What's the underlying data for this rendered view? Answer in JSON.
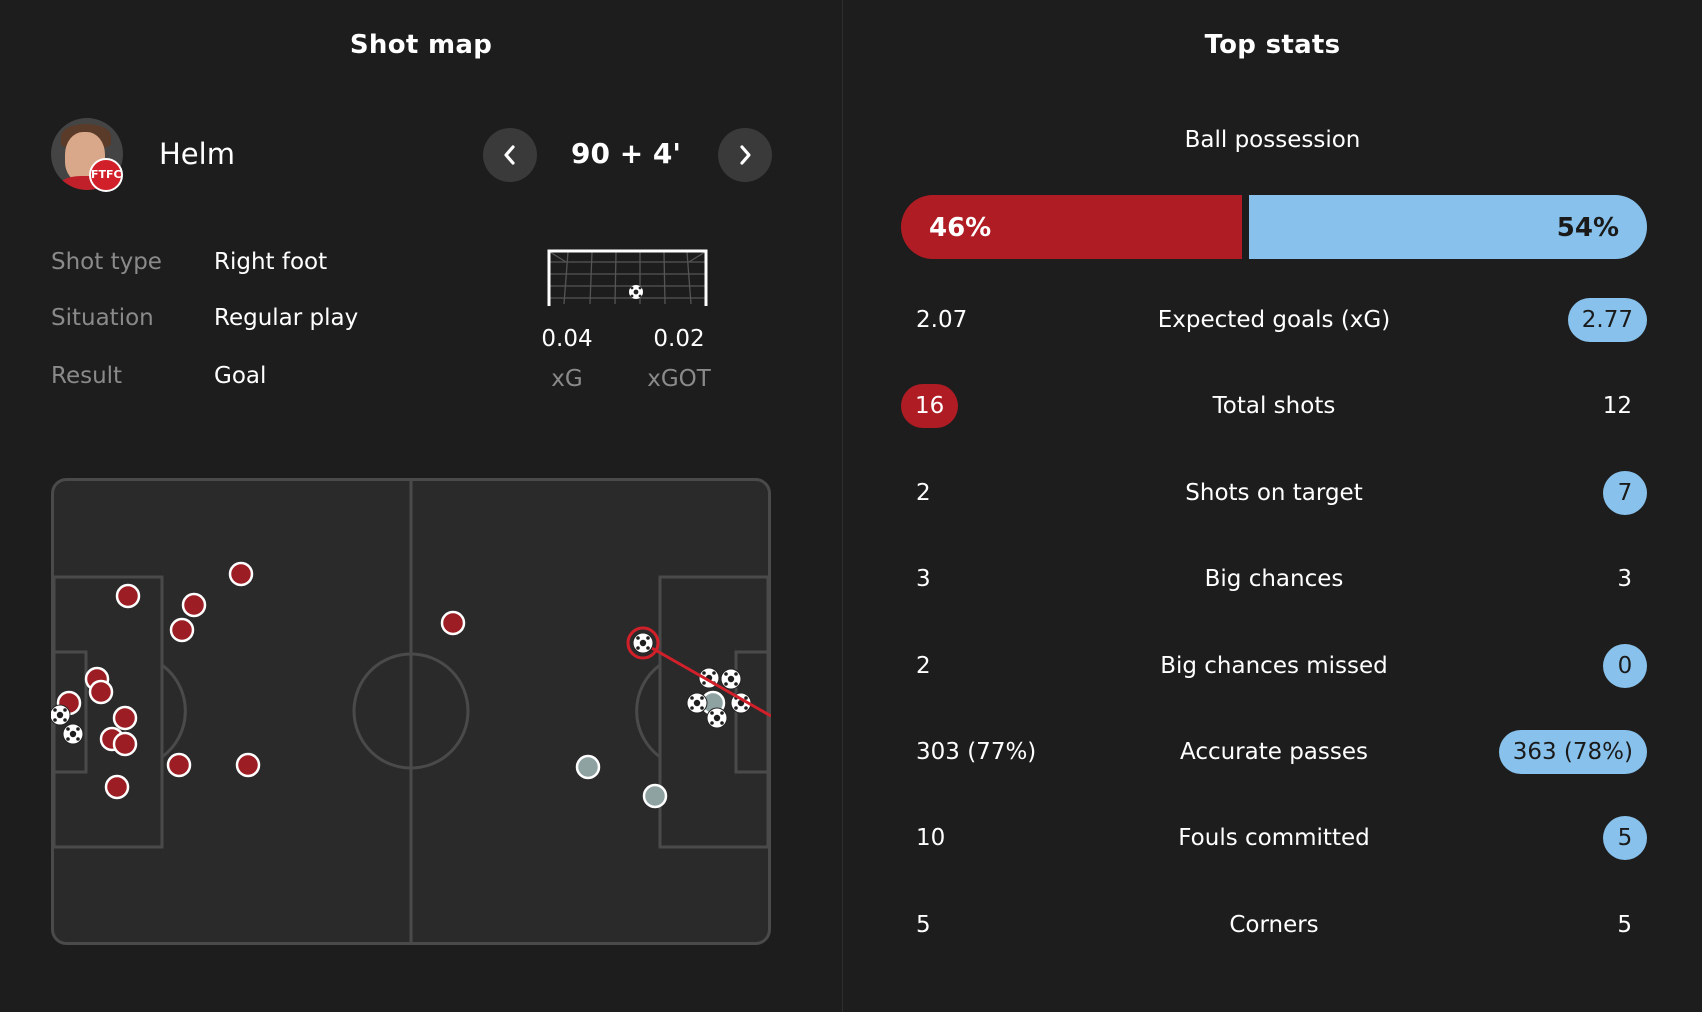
{
  "shot_map": {
    "title": "Shot map",
    "player": {
      "name": "Helm",
      "badge": "FTFC"
    },
    "minute": "90 + 4'",
    "details": [
      {
        "label": "Shot type",
        "value": "Right foot"
      },
      {
        "label": "Situation",
        "value": "Regular play"
      },
      {
        "label": "Result",
        "value": "Goal"
      }
    ],
    "xg": {
      "value": "0.04",
      "label": "xG"
    },
    "xgot": {
      "value": "0.02",
      "label": "xGOT"
    },
    "colors": {
      "home_shot": "#9c1e24",
      "away_shot": "#8fa2a2",
      "selected_line": "#d2202a",
      "pitch": "#2a2a2a",
      "pitch_lines": "#4a4a4a"
    }
  },
  "top_stats": {
    "title": "Top stats",
    "possession": {
      "label": "Ball possession",
      "home": "46%",
      "away": "54%",
      "home_fraction": 0.46
    },
    "rows": [
      {
        "home": "2.07",
        "label": "Expected goals (xG)",
        "away": "2.77",
        "highlight": "away"
      },
      {
        "home": "16",
        "label": "Total shots",
        "away": "12",
        "highlight": "home"
      },
      {
        "home": "2",
        "label": "Shots on target",
        "away": "7",
        "highlight": "away"
      },
      {
        "home": "3",
        "label": "Big chances",
        "away": "3",
        "highlight": "none"
      },
      {
        "home": "2",
        "label": "Big chances missed",
        "away": "0",
        "highlight": "away"
      },
      {
        "home": "303 (77%)",
        "label": "Accurate passes",
        "away": "363 (78%)",
        "highlight": "away"
      },
      {
        "home": "10",
        "label": "Fouls committed",
        "away": "5",
        "highlight": "away"
      },
      {
        "home": "5",
        "label": "Corners",
        "away": "5",
        "highlight": "none"
      }
    ],
    "colors": {
      "home": "#b01c24",
      "away": "#88c2ec"
    }
  }
}
